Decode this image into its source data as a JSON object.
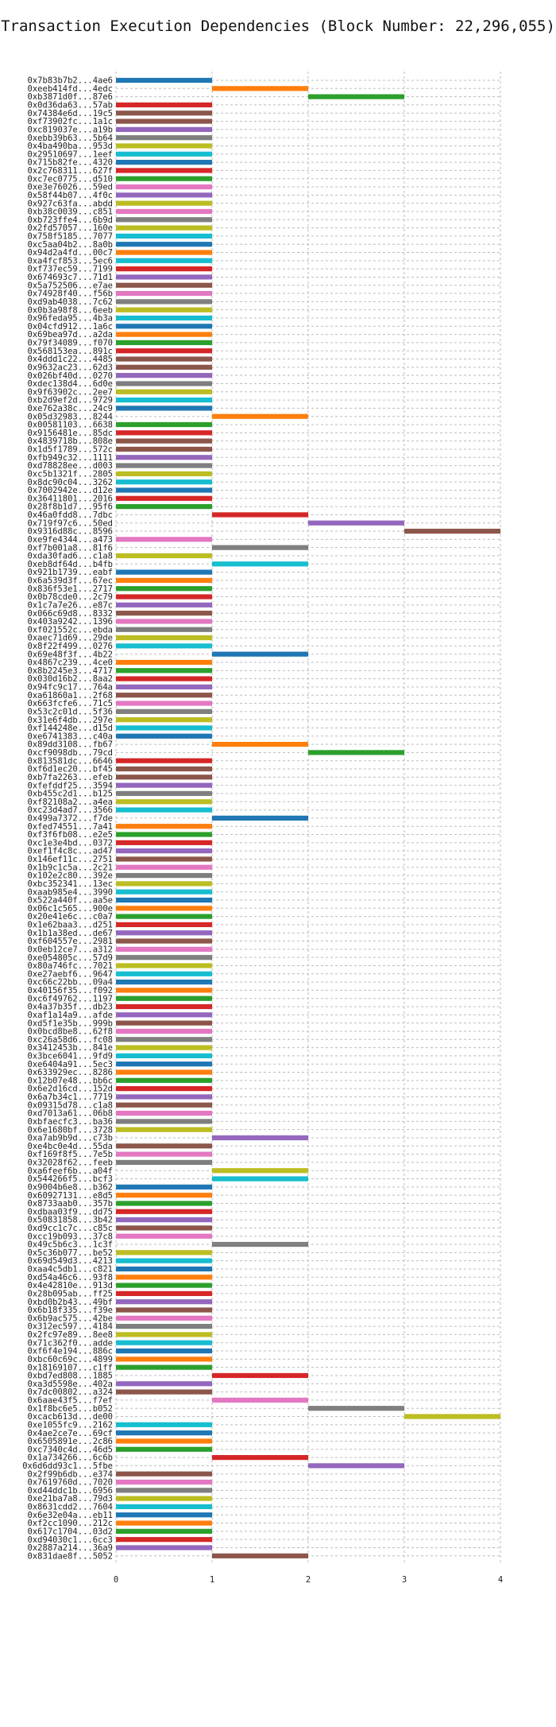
{
  "chart_data": {
    "type": "bar",
    "orientation": "horizontal-gantt",
    "title": "Transaction Execution Dependencies (Block Number: 22,296,055)",
    "xlabel": "",
    "ylabel": "",
    "xlim": [
      0,
      4
    ],
    "xticks": [
      "0",
      "1",
      "2",
      "3",
      "4"
    ],
    "grid": true,
    "palette": [
      "#1f77b4",
      "#ff7f0e",
      "#2ca02c",
      "#d62728",
      "#9467bd",
      "#8c564b",
      "#e377c2",
      "#7f7f7f",
      "#bcbd22",
      "#17becf"
    ],
    "categories": [
      "0x7b83b7b2...4ae6",
      "0xeeb414fd...4edc",
      "0xb3871d0f...87e6",
      "0x0d36da63...57ab",
      "0x74384e6d...19c5",
      "0xf73902fc...1a1c",
      "0xc819037e...a19b",
      "0xebb39b63...5b64",
      "0x4ba490ba...953d",
      "0x29510697...1eef",
      "0x715b82fe...4320",
      "0x2c768311...627f",
      "0xc7ec0775...d510",
      "0xe3e76026...59ed",
      "0x58f44b07...4f0c",
      "0x927c63fa...abdd",
      "0xb38c0039...c851",
      "0xb723ffe4...6b9d",
      "0x2fd57057...160e",
      "0x758f5185...7077",
      "0xc5aa04b2...8a0b",
      "0x94d2a4fd...00c7",
      "0xa4fcf853...5ec6",
      "0xf737ec59...7199",
      "0x674693c7...71d1",
      "0x5a752506...e7ae",
      "0x74928f40...f56b",
      "0xd9ab4038...7c62",
      "0x0b3a98f8...6eeb",
      "0x96feda95...4b3a",
      "0x04cfd912...1a6c",
      "0x69bea97d...a2da",
      "0x79f34089...f070",
      "0x568153ea...891c",
      "0x4ddd1c22...4485",
      "0x9632ac23...62d3",
      "0x026bf40d...0270",
      "0xdec138d4...6d0e",
      "0x9f63902c...2ee7",
      "0xb2d9ef2d...9729",
      "0xe762a38c...24c9",
      "0x05d32983...8244",
      "0x00581103...6638",
      "0x9156481e...85dc",
      "0x4839718b...808e",
      "0x1d5f1789...572c",
      "0xfb949c32...1111",
      "0xd78828ee...d003",
      "0xc5b1321f...2805",
      "0x8dc90c04...3262",
      "0x7002942e...d12e",
      "0x36411801...2016",
      "0x28f8b1d7...95f6",
      "0x46a0fdd8...7dbc",
      "0x719f97c6...50ed",
      "0x9316d88c...8596",
      "0xe9fe4344...a473",
      "0xf7b001a8...81f6",
      "0xda30fad6...c1a8",
      "0xeb8df64d...b4fb",
      "0x921b1739...eabf",
      "0x6a539d3f...67ec",
      "0x836f53e1...2717",
      "0x0b78cde0...2c79",
      "0x1c7a7e26...e87c",
      "0x066c69d8...8332",
      "0x403a9242...1396",
      "0xf021552c...ebda",
      "0xaec71d69...29de",
      "0x8f22f499...0276",
      "0x69e48f3f...4b22",
      "0x4867c239...4ce0",
      "0x8b2245e3...4717",
      "0x030d16b2...8aa2",
      "0x94fc9c17...764a",
      "0xa61860a1...2f68",
      "0x663fcfe6...71c5",
      "0x53c2c01d...5f36",
      "0x31e6f4db...297e",
      "0xf144248e...d15d",
      "0xe6741383...c40a",
      "0x89dd3108...fb67",
      "0xcf9098db...79cd",
      "0x813581dc...6646",
      "0xf6d1ec20...bf45",
      "0xb7fa2263...efeb",
      "0xfefddf25...3594",
      "0xb455c2d1...b125",
      "0xf82108a2...a4ea",
      "0xc23d4ad7...3566",
      "0x499a7372...f7de",
      "0xfed74551...7a41",
      "0xf3f6fb08...e2e5",
      "0xc1e3e4bd...0372",
      "0xef1f4c8c...ad47",
      "0x146ef11c...2751",
      "0x1b9c1c5a...2c21",
      "0x102e2c80...392e",
      "0xbc352341...13ec",
      "0xaab985e4...3990",
      "0x522a440f...aa5e",
      "0x06c1c565...900e",
      "0x20e41e6c...c0a7",
      "0x1e62baa3...d251",
      "0x1b1a38ed...de67",
      "0xf604557e...2981",
      "0x0eb12ce7...a312",
      "0xe054805c...57d9",
      "0x80a746fc...7021",
      "0xe27aebf6...9647",
      "0xc66c22bb...09a4",
      "0x40156f35...f092",
      "0xc6f49762...1197",
      "0x4a37b35f...db23",
      "0xaf1a14a9...afde",
      "0xd5f1e35b...999b",
      "0x0bcd8be8...62f8",
      "0xc26a58d6...fc08",
      "0x3412453b...841e",
      "0x3bce6041...9fd9",
      "0xe6404a91...5ec3",
      "0x633929ec...8286",
      "0x12b07e48...bb6c",
      "0x6e2d16cd...152d",
      "0x6a7b34c1...7719",
      "0x09315d78...c1a8",
      "0xd7013a61...06b8",
      "0xbfaecfc3...ba36",
      "0x6e1680bf...3728",
      "0xa7ab9b9d...c73b",
      "0xe4bc0e4d...55da",
      "0xf169f8f5...7e5b",
      "0x32028f62...feeb",
      "0xa6feef6b...a04f",
      "0x544266f5...bcf3",
      "0x9004b6e8...b362",
      "0x60927131...e8d5",
      "0x8733aab0...357b",
      "0xdbaa03f9...dd75",
      "0x50831858...3b42",
      "0xd9cc1c7c...c85c",
      "0xcc19b093...37c8",
      "0x49c5b6c3...1c3f",
      "0x5c36b077...be52",
      "0x69d549d3...4213",
      "0xaa4c5db1...c821",
      "0xd54a46c6...93f8",
      "0x4e42810e...913d",
      "0x28b095ab...ff25",
      "0xbd0b2b43...49bf",
      "0x6b18f335...f39e",
      "0x6b9ac575...42be",
      "0x312ec597...4184",
      "0x2fc97e89...8ee8",
      "0x71c362f0...adde",
      "0xf6f4e194...886c",
      "0xbc60c69c...4899",
      "0x18169107...c1ff",
      "0xbd7ed808...1885",
      "0xa3d5598e...402a",
      "0x7dc00802...a324",
      "0x6aae43f5...f7ef",
      "0x1f8bc6e5...b052",
      "0xcacb613d...de00",
      "0xe1055fc9...2162",
      "0x4ae2ce7e...69cf",
      "0x6505891e...2c86",
      "0xc7340c4d...46d5",
      "0x1a734266...6c6b",
      "0x6d6dd93c1...5fbe",
      "0x2f99b6db...e374",
      "0x7619760d...7020",
      "0xd44ddc1b...6956",
      "0xe21ba7a8...79d3",
      "0x8631cdd2...7604",
      "0x6e32e04a...eb11",
      "0xf2cc1090...212c",
      "0x617c1704...03d2",
      "0xd94030c1...6cc3",
      "0x2887a214...36a9",
      "0x831dae8f...5052"
    ],
    "start": [
      0,
      1,
      2,
      0,
      0,
      0,
      0,
      0,
      0,
      0,
      0,
      0,
      0,
      0,
      0,
      0,
      0,
      0,
      0,
      0,
      0,
      0,
      0,
      0,
      0,
      0,
      0,
      0,
      0,
      0,
      0,
      0,
      0,
      0,
      0,
      0,
      0,
      0,
      0,
      0,
      0,
      1,
      0,
      0,
      0,
      0,
      0,
      0,
      0,
      0,
      0,
      0,
      0,
      1,
      2,
      3,
      0,
      1,
      0,
      1,
      0,
      0,
      0,
      0,
      0,
      0,
      0,
      0,
      0,
      0,
      1,
      0,
      0,
      0,
      0,
      0,
      0,
      0,
      0,
      0,
      0,
      1,
      2,
      0,
      0,
      0,
      0,
      0,
      0,
      0,
      1,
      0,
      0,
      0,
      0,
      0,
      0,
      0,
      0,
      0,
      0,
      0,
      0,
      0,
      0,
      0,
      0,
      0,
      0,
      0,
      0,
      0,
      0,
      0,
      0,
      0,
      0,
      0,
      0,
      0,
      0,
      0,
      0,
      0,
      0,
      0,
      0,
      0,
      0,
      1,
      0,
      0,
      0,
      1,
      1,
      0,
      0,
      0,
      0,
      0,
      0,
      0,
      1,
      0,
      0,
      0,
      0,
      0,
      0,
      0,
      0,
      0,
      0,
      0,
      0,
      0,
      0,
      0,
      1,
      0,
      0,
      1,
      2,
      3,
      0,
      0,
      0,
      0,
      1,
      2,
      0,
      0,
      0,
      0,
      0,
      0,
      0,
      0,
      0,
      0,
      1,
      1,
      0,
      0,
      1,
      0
    ],
    "end": [
      1,
      2,
      3,
      1,
      1,
      1,
      1,
      1,
      1,
      1,
      1,
      1,
      1,
      1,
      1,
      1,
      1,
      1,
      1,
      1,
      1,
      1,
      1,
      1,
      1,
      1,
      1,
      1,
      1,
      1,
      1,
      1,
      1,
      1,
      1,
      1,
      1,
      1,
      1,
      1,
      1,
      2,
      1,
      1,
      1,
      1,
      1,
      1,
      1,
      1,
      1,
      1,
      1,
      2,
      3,
      4,
      1,
      2,
      1,
      2,
      1,
      1,
      1,
      1,
      1,
      1,
      1,
      1,
      1,
      1,
      2,
      1,
      1,
      1,
      1,
      1,
      1,
      1,
      1,
      1,
      1,
      2,
      3,
      1,
      1,
      1,
      1,
      1,
      1,
      1,
      2,
      1,
      1,
      1,
      1,
      1,
      1,
      1,
      1,
      1,
      1,
      1,
      1,
      1,
      1,
      1,
      1,
      1,
      1,
      1,
      1,
      1,
      1,
      1,
      1,
      1,
      1,
      1,
      1,
      1,
      1,
      1,
      1,
      1,
      1,
      1,
      1,
      1,
      1,
      2,
      1,
      1,
      1,
      2,
      2,
      1,
      1,
      1,
      1,
      1,
      1,
      1,
      2,
      1,
      1,
      1,
      1,
      1,
      1,
      1,
      1,
      1,
      1,
      1,
      1,
      1,
      1,
      1,
      2,
      1,
      1,
      2,
      3,
      4,
      1,
      1,
      1,
      1,
      2,
      3,
      1,
      1,
      1,
      1,
      1,
      1,
      1,
      1,
      1,
      1,
      2,
      2,
      1,
      1,
      2,
      1
    ],
    "colors": [
      0,
      1,
      2,
      3,
      5,
      5,
      4,
      7,
      8,
      9,
      0,
      3,
      2,
      6,
      4,
      8,
      6,
      7,
      8,
      9,
      0,
      1,
      9,
      3,
      4,
      5,
      6,
      7,
      8,
      9,
      0,
      1,
      2,
      3,
      5,
      5,
      4,
      7,
      8,
      9,
      0,
      1,
      2,
      3,
      5,
      5,
      4,
      7,
      8,
      9,
      0,
      3,
      2,
      3,
      4,
      5,
      6,
      7,
      8,
      9,
      0,
      1,
      2,
      3,
      4,
      5,
      6,
      7,
      8,
      9,
      0,
      1,
      2,
      3,
      4,
      5,
      6,
      7,
      8,
      9,
      0,
      1,
      2,
      3,
      5,
      5,
      4,
      7,
      8,
      9,
      0,
      1,
      2,
      3,
      4,
      5,
      6,
      7,
      8,
      9,
      0,
      1,
      2,
      3,
      4,
      5,
      6,
      7,
      8,
      9,
      0,
      1,
      2,
      3,
      4,
      5,
      6,
      7,
      8,
      9,
      0,
      1,
      2,
      3,
      4,
      5,
      6,
      7,
      8,
      4,
      5,
      6,
      7,
      8,
      9,
      0,
      1,
      2,
      3,
      4,
      5,
      6,
      7,
      8,
      9,
      0,
      1,
      2,
      3,
      4,
      5,
      6,
      7,
      8,
      9,
      0,
      1,
      2,
      3,
      4,
      5,
      6,
      7,
      8,
      9,
      0,
      1,
      2,
      3,
      4,
      5,
      6,
      7,
      8,
      9,
      0,
      1,
      2,
      3,
      4,
      5,
      6,
      7,
      8,
      9,
      0
    ]
  }
}
